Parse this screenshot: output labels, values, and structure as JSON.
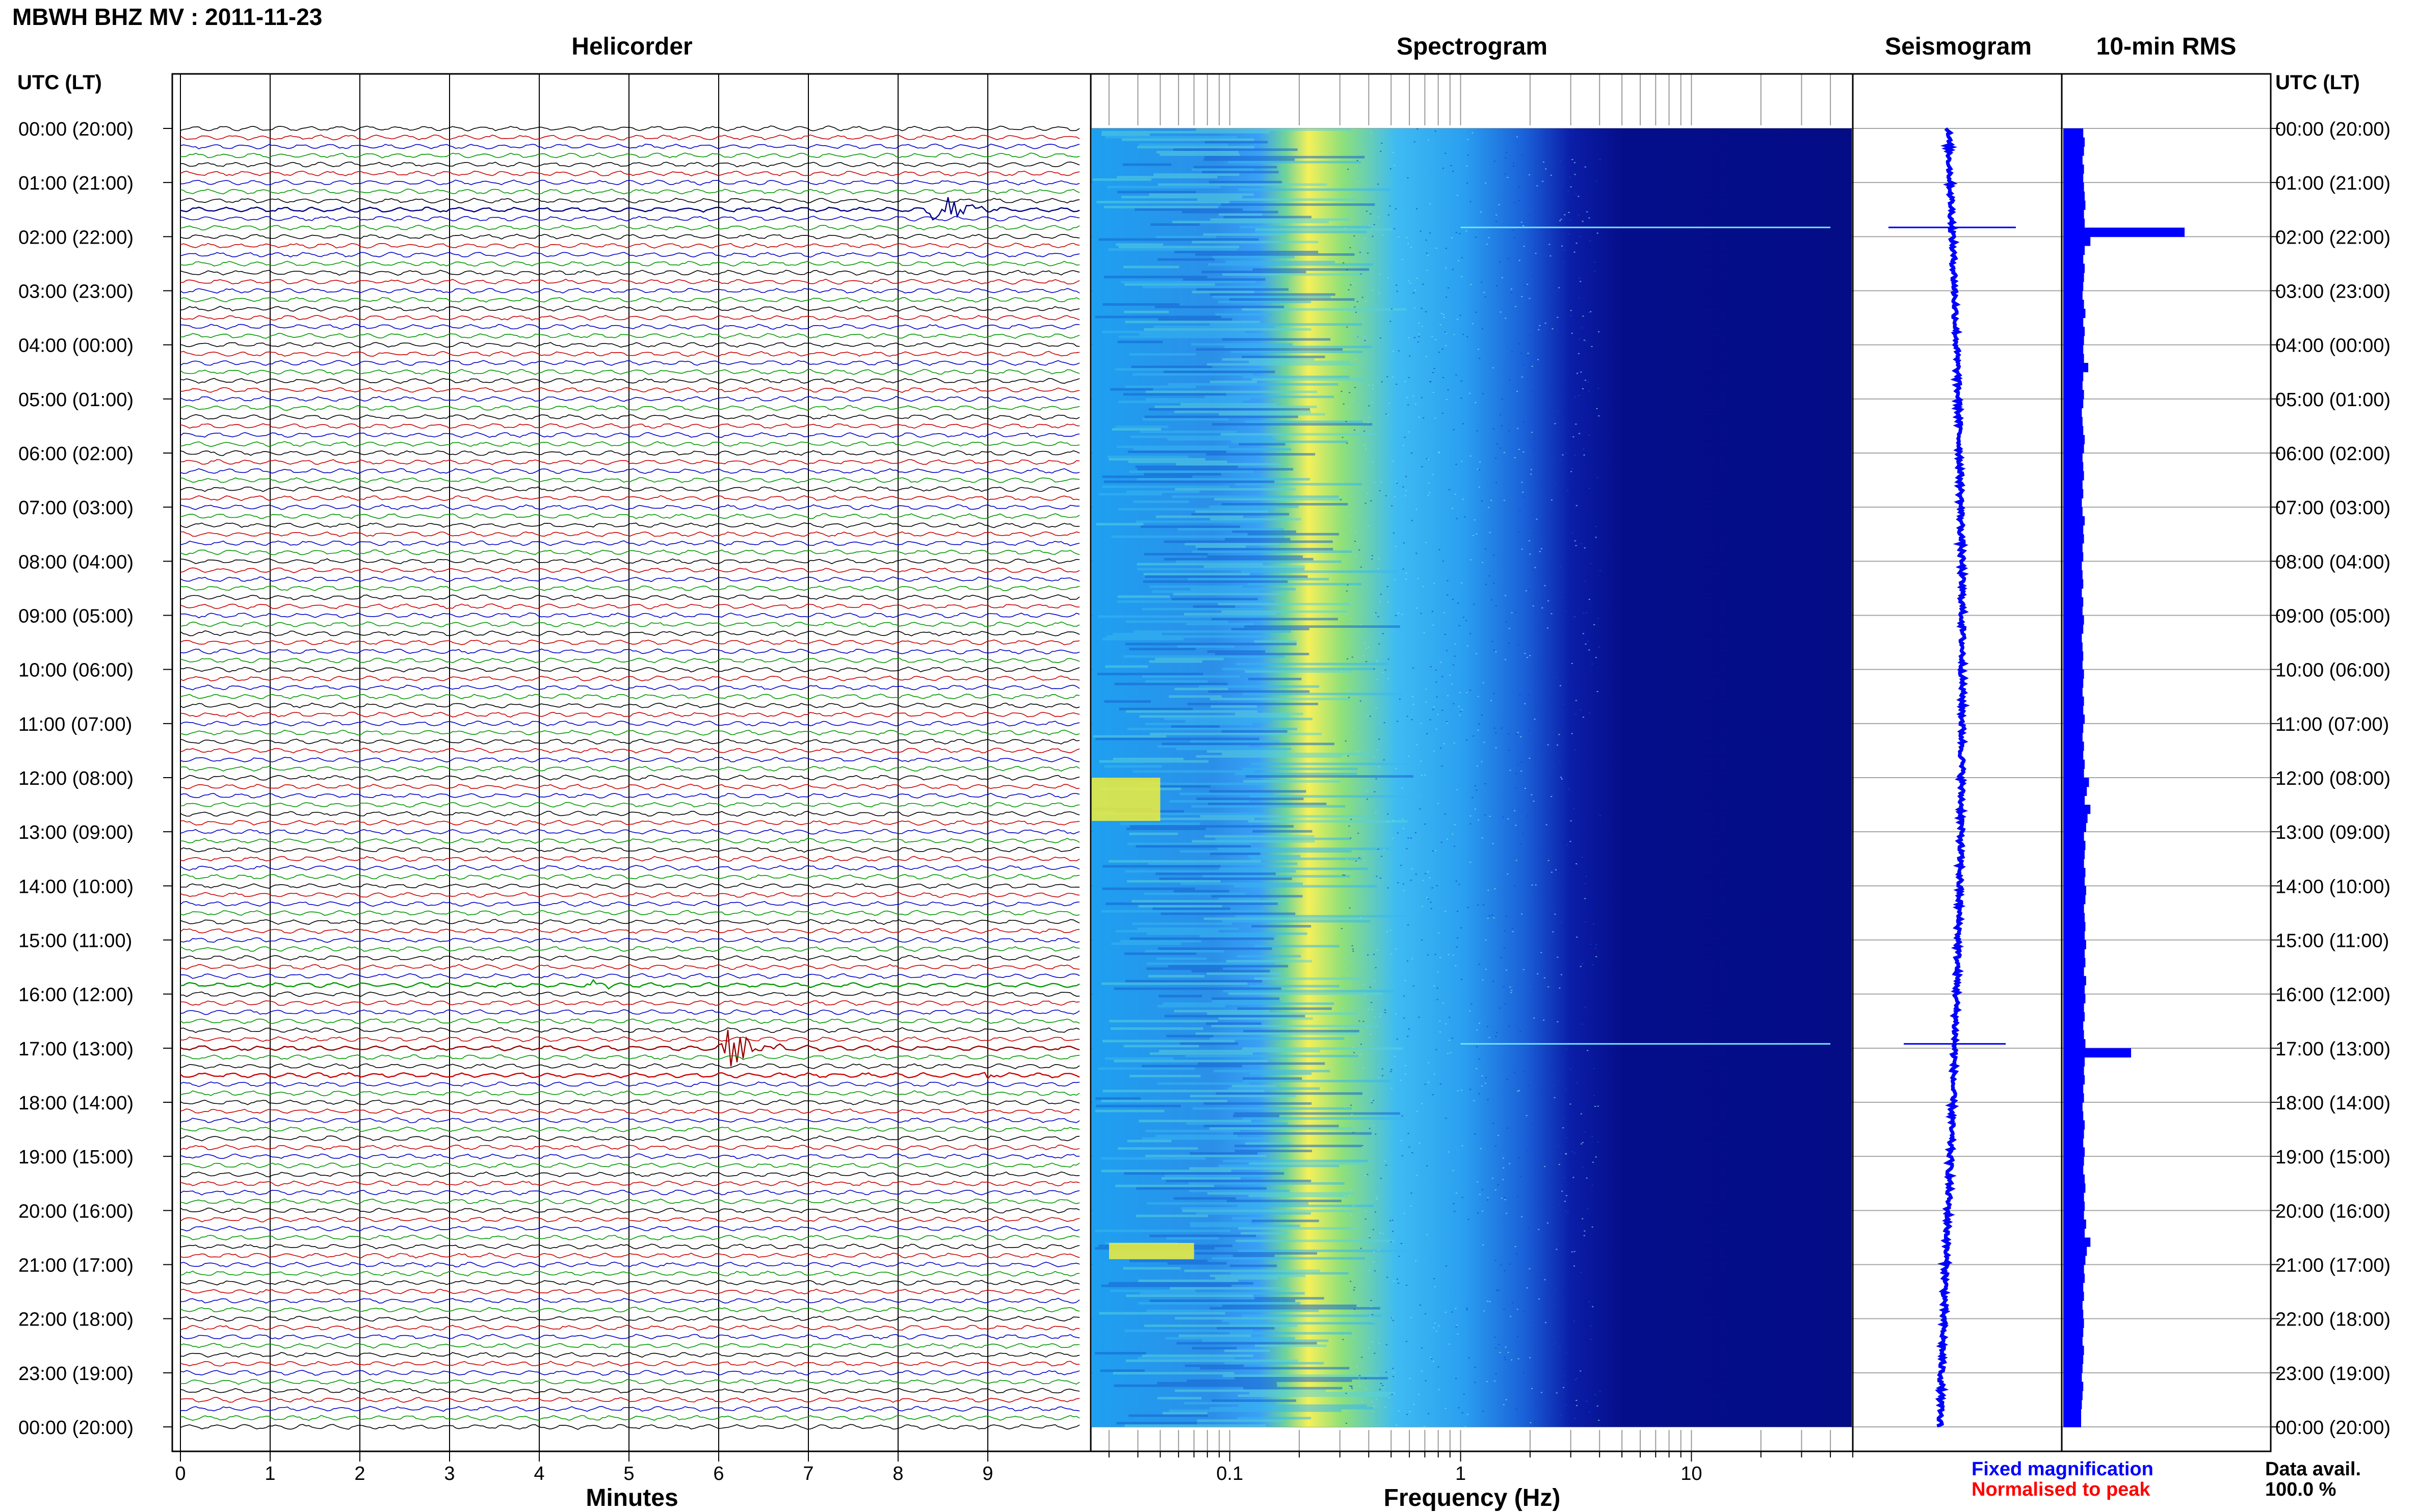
{
  "title": "MBWH BHZ MV : 2011-11-23",
  "panels": {
    "helicorder": "Helicorder",
    "spectrogram": "Spectrogram",
    "seismogram": "Seismogram",
    "rms": "10-min RMS"
  },
  "time_axis_label": "UTC (LT)",
  "time_axis_label_right": "UTC (LT)",
  "x_axis_labels": {
    "helicorder": "Minutes",
    "spectrogram": "Frequency (Hz)"
  },
  "legend": {
    "fixed": "Fixed magnification",
    "normalised": "Normalised to peak",
    "fixed_color": "#0000ff",
    "normalised_color": "#ff0000"
  },
  "data_avail": {
    "label": "Data avail.",
    "value": "100.0 %"
  },
  "colors": {
    "trace_cycle": [
      "#000000",
      "#cc0000",
      "#0000cc",
      "#009900"
    ],
    "spectro_low": "#00007f",
    "spectro_mid": "#1e90ff",
    "spectro_high": "#ffff33",
    "rms_bar": "#0000ff"
  },
  "chart_data": [
    {
      "type": "line",
      "name": "Helicorder",
      "xlabel": "Minutes",
      "xlim": [
        0,
        10
      ],
      "x_ticks": [
        0,
        1,
        2,
        3,
        4,
        5,
        6,
        7,
        8,
        9
      ],
      "ylim_hours": [
        0,
        24
      ],
      "rows": 144,
      "row_minutes": 10,
      "time_labels": [
        "00:00 (20:00)",
        "01:00 (21:00)",
        "02:00 (22:00)",
        "03:00 (23:00)",
        "04:00 (00:00)",
        "05:00 (01:00)",
        "06:00 (02:00)",
        "07:00 (03:00)",
        "08:00 (04:00)",
        "09:00 (05:00)",
        "10:00 (06:00)",
        "11:00 (07:00)",
        "12:00 (08:00)",
        "13:00 (09:00)",
        "14:00 (10:00)",
        "15:00 (11:00)",
        "16:00 (12:00)",
        "17:00 (13:00)",
        "18:00 (14:00)",
        "19:00 (15:00)",
        "20:00 (16:00)",
        "21:00 (17:00)",
        "22:00 (18:00)",
        "23:00 (19:00)",
        "00:00 (20:00)"
      ],
      "events": [
        {
          "row": 9,
          "start_min": 8.0,
          "end_min": 9.5,
          "peak_min": 8.4,
          "amplitude": 1.0
        },
        {
          "row": 102,
          "start_min": 6.0,
          "end_min": 7.0,
          "peak_min": 6.1,
          "amplitude": 0.9
        },
        {
          "row": 95,
          "start_min": 4.4,
          "end_min": 4.8,
          "peak_min": 4.6,
          "amplitude": 0.2
        },
        {
          "row": 105,
          "start_min": 8.8,
          "end_min": 9.2,
          "peak_min": 9.0,
          "amplitude": 0.15
        }
      ]
    },
    {
      "type": "heatmap",
      "name": "Spectrogram",
      "xlabel": "Frequency (Hz)",
      "x_scale": "log",
      "xlim": [
        0.025,
        50
      ],
      "x_tick_labels": [
        0.1,
        1,
        10
      ],
      "ylim_hours": [
        0,
        24
      ],
      "peak_band_hz": [
        0.17,
        0.3
      ],
      "high_energy_patches": [
        {
          "hour_start": 20.6,
          "hour_end": 20.9,
          "freq_lo": 0.03,
          "freq_hi": 0.07
        },
        {
          "hour_start": 12.0,
          "hour_end": 12.8,
          "freq_lo": 0.025,
          "freq_hi": 0.05
        }
      ],
      "event_lines_hours": [
        1.83,
        16.92
      ]
    },
    {
      "type": "line",
      "name": "Seismogram",
      "ylim_hours": [
        0,
        24
      ],
      "spikes_hours": [
        1.83,
        16.92
      ]
    },
    {
      "type": "bar",
      "name": "10-min RMS",
      "orientation": "horizontal",
      "ylim_hours": [
        0,
        24
      ],
      "values": [
        0.28,
        0.3,
        0.29,
        0.27,
        0.29,
        0.28,
        0.29,
        0.3,
        0.31,
        0.29,
        0.3,
        1.7,
        0.38,
        0.3,
        0.28,
        0.3,
        0.29,
        0.28,
        0.27,
        0.29,
        0.31,
        0.28,
        0.3,
        0.29,
        0.28,
        0.29,
        0.35,
        0.28,
        0.27,
        0.29,
        0.28,
        0.26,
        0.27,
        0.28,
        0.3,
        0.29,
        0.27,
        0.28,
        0.29,
        0.27,
        0.28,
        0.26,
        0.27,
        0.3,
        0.28,
        0.29,
        0.27,
        0.28,
        0.26,
        0.27,
        0.28,
        0.26,
        0.28,
        0.27,
        0.29,
        0.28,
        0.26,
        0.27,
        0.28,
        0.27,
        0.29,
        0.28,
        0.27,
        0.29,
        0.28,
        0.3,
        0.28,
        0.27,
        0.29,
        0.28,
        0.3,
        0.29,
        0.36,
        0.33,
        0.3,
        0.38,
        0.34,
        0.32,
        0.29,
        0.31,
        0.3,
        0.29,
        0.31,
        0.3,
        0.32,
        0.31,
        0.29,
        0.3,
        0.31,
        0.3,
        0.32,
        0.3,
        0.31,
        0.29,
        0.32,
        0.3,
        0.31,
        0.29,
        0.3,
        0.28,
        0.29,
        0.31,
        0.95,
        0.3,
        0.29,
        0.3,
        0.28,
        0.29,
        0.27,
        0.28,
        0.3,
        0.29,
        0.28,
        0.3,
        0.29,
        0.28,
        0.3,
        0.31,
        0.29,
        0.3,
        0.29,
        0.32,
        0.3,
        0.38,
        0.33,
        0.31,
        0.29,
        0.3,
        0.28,
        0.29,
        0.27,
        0.28,
        0.29,
        0.28,
        0.27,
        0.29,
        0.28,
        0.27,
        0.26,
        0.28,
        0.27,
        0.26,
        0.25,
        0.25
      ]
    }
  ]
}
